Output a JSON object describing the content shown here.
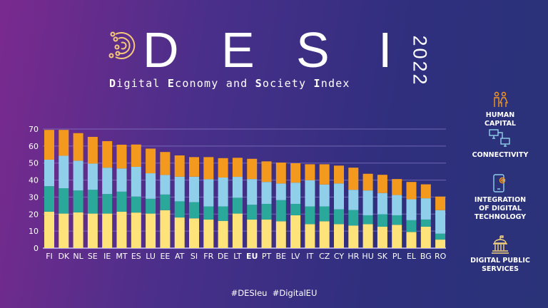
{
  "header": {
    "title_letters": [
      "D",
      "E",
      "S",
      "I"
    ],
    "year": "2022",
    "subtitle_parts": [
      {
        "bold": "D",
        "rest": "igital "
      },
      {
        "bold": "E",
        "rest": "conomy and "
      },
      {
        "bold": "S",
        "rest": "ociety "
      },
      {
        "bold": "I",
        "rest": "ndex"
      }
    ]
  },
  "legend": [
    {
      "label_lines": [
        "HUMAN",
        "CAPITAL"
      ],
      "icon": "people-icon",
      "color": "#f39a1e"
    },
    {
      "label_lines": [
        "CONNECTIVITY"
      ],
      "icon": "network-computers-icon",
      "color": "#8fcfea"
    },
    {
      "label_lines": [
        "INTEGRATION",
        "OF DIGITAL",
        "TECHNOLOGY"
      ],
      "icon": "phone-gear-icon",
      "color": "#2aa89a"
    },
    {
      "label_lines": [
        "DIGITAL PUBLIC",
        "SERVICES"
      ],
      "icon": "government-building-icon",
      "color": "#fde37a"
    }
  ],
  "footer": {
    "hashtags": "#DESIeu  #DigitalEU"
  },
  "chart_data": {
    "type": "bar",
    "stacked": true,
    "ylim": [
      0,
      70
    ],
    "yticks": [
      0,
      10,
      20,
      30,
      40,
      50,
      60,
      70
    ],
    "grid": true,
    "categories": [
      "FI",
      "DK",
      "NL",
      "SE",
      "IE",
      "MT",
      "ES",
      "LU",
      "EE",
      "AT",
      "SI",
      "FR",
      "DE",
      "LT",
      "EU",
      "PT",
      "BE",
      "LV",
      "IT",
      "CZ",
      "CY",
      "HR",
      "HU",
      "SK",
      "PL",
      "EL",
      "BG",
      "RO"
    ],
    "highlight": "EU",
    "series": [
      {
        "name": "DIGITAL PUBLIC SERVICES",
        "color": "#fde37a",
        "values": [
          21.4,
          20.3,
          21.0,
          20.3,
          20.3,
          21.4,
          20.9,
          20.3,
          22.3,
          18.0,
          17.5,
          16.8,
          16.0,
          20.3,
          16.8,
          16.8,
          15.8,
          19.3,
          14.1,
          15.8,
          14.1,
          13.3,
          14.1,
          12.6,
          13.7,
          9.5,
          12.6,
          5.0
        ]
      },
      {
        "name": "INTEGRATION OF DIGITAL TECHNOLOGY",
        "color": "#2aa89a",
        "values": [
          15.0,
          14.9,
          12.9,
          14.0,
          11.5,
          11.8,
          9.4,
          8.7,
          9.2,
          9.5,
          9.5,
          7.7,
          8.5,
          9.3,
          8.7,
          9.2,
          12.4,
          6.7,
          10.4,
          8.7,
          8.7,
          9.1,
          5.2,
          7.3,
          5.6,
          6.9,
          4.2,
          3.5
        ]
      },
      {
        "name": "CONNECTIVITY",
        "color": "#8fcfea",
        "values": [
          15.6,
          19.1,
          17.5,
          15.4,
          15.5,
          13.6,
          17.5,
          15.0,
          11.5,
          14.5,
          15.0,
          16.0,
          17.0,
          12.3,
          15.1,
          12.9,
          9.8,
          12.5,
          15.4,
          12.9,
          15.2,
          11.9,
          14.6,
          12.5,
          11.9,
          12.3,
          12.5,
          13.8
        ]
      },
      {
        "name": "HUMAN CAPITAL",
        "color": "#f39a1e",
        "values": [
          17.5,
          15.2,
          16.2,
          15.7,
          15.6,
          14.0,
          13.1,
          14.5,
          13.5,
          12.5,
          11.5,
          13.0,
          11.4,
          11.2,
          11.9,
          12.1,
          12.3,
          11.4,
          9.4,
          11.9,
          10.5,
          13.0,
          9.8,
          10.7,
          9.4,
          10.2,
          8.2,
          8.0
        ]
      }
    ]
  }
}
